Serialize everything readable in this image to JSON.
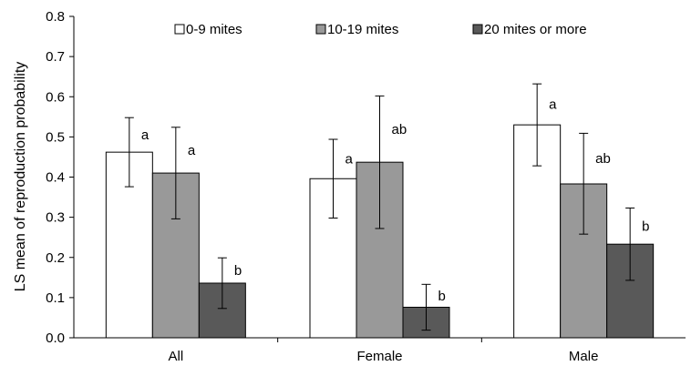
{
  "chart_data": {
    "type": "bar",
    "title": "",
    "xlabel": "",
    "ylabel": "LS mean of reproduction probability",
    "ylim": [
      0,
      0.8
    ],
    "yticks": [
      "0.0",
      "0.1",
      "0.2",
      "0.3",
      "0.4",
      "0.5",
      "0.6",
      "0.7",
      "0.8"
    ],
    "grid": false,
    "legend_position": "top",
    "categories": [
      "All",
      "Female",
      "Male"
    ],
    "series": [
      {
        "name": "0-9 mites",
        "color": "#ffffff",
        "values": [
          0.462,
          0.396,
          0.53
        ],
        "err_low": [
          0.376,
          0.298,
          0.428
        ],
        "err_high": [
          0.548,
          0.494,
          0.632
        ],
        "labels": [
          "a",
          "a",
          "a"
        ]
      },
      {
        "name": "10-19 mites",
        "color": "#999999",
        "values": [
          0.41,
          0.437,
          0.383
        ],
        "err_low": [
          0.296,
          0.272,
          0.258
        ],
        "err_high": [
          0.524,
          0.602,
          0.509
        ],
        "labels": [
          "a",
          "ab",
          "ab"
        ]
      },
      {
        "name": "20 mites or more",
        "color": "#595959",
        "values": [
          0.136,
          0.076,
          0.233
        ],
        "err_low": [
          0.073,
          0.019,
          0.143
        ],
        "err_high": [
          0.199,
          0.133,
          0.323
        ],
        "labels": [
          "b",
          "b",
          "b"
        ]
      }
    ]
  }
}
